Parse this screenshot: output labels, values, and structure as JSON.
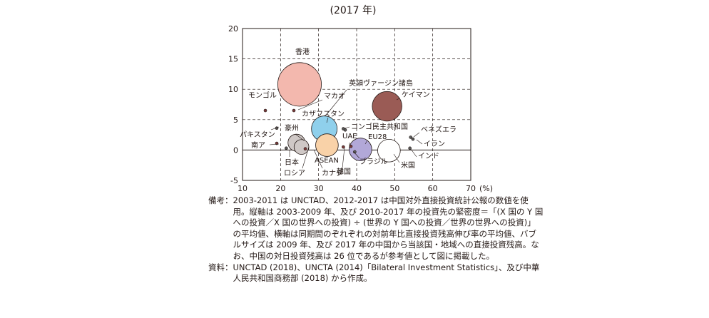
{
  "chart_data": {
    "type": "scatter",
    "title": "(2017 年)",
    "xlim": [
      10,
      70
    ],
    "ylim": [
      -5,
      20
    ],
    "x_ticks": [
      10,
      20,
      30,
      40,
      50,
      60,
      70
    ],
    "x_tick_labels": [
      "10",
      "20",
      "30",
      "40",
      "50",
      "60",
      "70"
    ],
    "x_unit": "(%)",
    "y_ticks": [
      -5,
      0,
      5,
      10,
      15,
      20
    ],
    "y_tick_labels": [
      "-5",
      "0",
      "5",
      "10",
      "15",
      "20"
    ],
    "grid": "dashed",
    "points": [
      {
        "label": "香港",
        "x": 25,
        "y": 10.8,
        "size": 26,
        "color": "#f3b8ae"
      },
      {
        "label": "英領ヴァージン諸島",
        "x": 36.5,
        "y": 3.5,
        "size": 1.5,
        "color": "#5a5a5a"
      },
      {
        "label": "ケイマン",
        "x": 48,
        "y": 7.2,
        "size": 12,
        "color": "#9a5b55"
      },
      {
        "label": "モンゴル",
        "x": 16,
        "y": 6.5,
        "size": 1.5,
        "color": "#7a3b3b"
      },
      {
        "label": "マカオ",
        "x": 23.5,
        "y": 6.5,
        "size": 1.5,
        "color": "#7a3b3b"
      },
      {
        "label": "カザフスタン",
        "x": 31.5,
        "y": 3.5,
        "size": 9,
        "color": "#8fd0ec"
      },
      {
        "label": "コンゴ民主共和国",
        "x": 37,
        "y": 3.3,
        "size": 1.5,
        "color": "#5a5a5a"
      },
      {
        "label": "ベネズエラ",
        "x": 54.2,
        "y": 2.1,
        "size": 1.5,
        "color": "#5a5a5a"
      },
      {
        "label": "イラン",
        "x": 54.8,
        "y": 1.8,
        "size": 1.5,
        "color": "#5a5a5a"
      },
      {
        "label": "インド",
        "x": 54,
        "y": 0.3,
        "size": 1.5,
        "color": "#5a5a5a"
      },
      {
        "label": "パキスタン",
        "x": 19,
        "y": 3.6,
        "size": 1.5,
        "color": "#5a5a5a"
      },
      {
        "label": "南ア",
        "x": 19,
        "y": 1.1,
        "size": 1.5,
        "color": "#7a3b3b"
      },
      {
        "label": "豪州",
        "x": 24.2,
        "y": 1.2,
        "size": 4,
        "color": "#cfc8c6"
      },
      {
        "label": "日本",
        "x": 21.5,
        "y": 0.3,
        "size": 1.5,
        "color": "#5a5a5a"
      },
      {
        "label": "ロシア",
        "x": 25.5,
        "y": 0.5,
        "size": 3,
        "color": "#cfc8c6"
      },
      {
        "label": "カナダ",
        "x": 26.5,
        "y": 0.2,
        "size": 1.5,
        "color": "#7a3b3b"
      },
      {
        "label": "ASEAN",
        "x": 32.2,
        "y": 0.8,
        "size": 7,
        "color": "#f9d2a8"
      },
      {
        "label": "韓国",
        "x": 36.5,
        "y": 0.5,
        "size": 1.8,
        "color": "#7a3b3b"
      },
      {
        "label": "UAE",
        "x": 38.5,
        "y": 0.6,
        "size": 1.8,
        "color": "#7a3b3b"
      },
      {
        "label": "EU28",
        "x": 41,
        "y": 0.1,
        "size": 7,
        "color": "#b2a8d8"
      },
      {
        "label": "ブラジル",
        "x": 39.5,
        "y": -0.3,
        "size": 1.5,
        "color": "#5a5a5a"
      },
      {
        "label": "米国",
        "x": 48.5,
        "y": -0.1,
        "size": 7,
        "color": "#ffffff"
      }
    ]
  },
  "notes": [
    {
      "head": "備考：",
      "text": "2003-2011 は UNCTAD、2012-2017 は中国対外直接投資統計公報の数値を使用。縦軸は 2003-2009 年、及び 2010-2017 年の投資先の緊密度＝「(X 国の Y 国への投資／X 国の世界への投資) ÷ (世界の Y 国への投資／世界の世界への投資)」の平均値、横軸は同期間のぞれぞれの対前年比直接投資残高伸び率の平均値、バブルサイズは 2009 年、及び 2017 年の中国から当該国・地域への直接投資残高。なお、中国の対日投資残高は 26 位であるが参考値として図に掲載した。"
    },
    {
      "head": "資料：",
      "text": "UNCTAD (2018)、UNCTA (2014)「Bilateral Investment Statistics」、及び中華人民共和国商務部 (2018) から作成。"
    }
  ]
}
